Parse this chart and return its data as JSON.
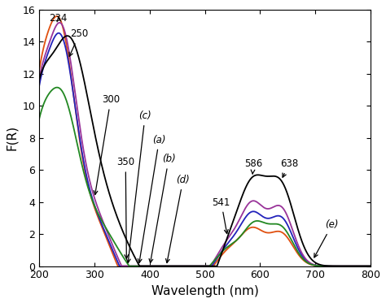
{
  "title": "",
  "xlabel": "Wavelength (nm)",
  "ylabel": "F(R)",
  "xlim": [
    200,
    800
  ],
  "ylim": [
    0,
    16
  ],
  "yticks": [
    0,
    2,
    4,
    6,
    8,
    10,
    12,
    14,
    16
  ],
  "xticks": [
    200,
    300,
    400,
    500,
    600,
    700,
    800
  ],
  "curves": {
    "a": {
      "color": "#E05010",
      "label": "(a)"
    },
    "b": {
      "color": "#2222BB",
      "label": "(b)"
    },
    "c": {
      "color": "#993399",
      "label": "(c)"
    },
    "d": {
      "color": "#228822",
      "label": "(d)"
    },
    "e": {
      "color": "#000000",
      "label": "(e)"
    }
  },
  "figsize": [
    4.74,
    3.73
  ],
  "dpi": 100
}
